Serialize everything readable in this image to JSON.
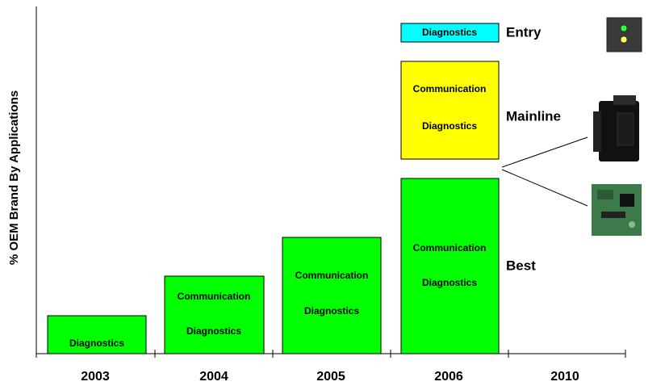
{
  "axis_label": "% OEM Brand By Applications",
  "years": [
    "2003",
    "2004",
    "2005",
    "2006",
    "2010"
  ],
  "blocks": [
    {
      "lines": [
        "Diagnostics"
      ]
    },
    {
      "lines": [
        "Communication",
        "Diagnostics"
      ]
    },
    {
      "lines": [
        "Communication",
        "Diagnostics"
      ]
    },
    {
      "lines": [
        "Communication",
        "Diagnostics"
      ]
    },
    {
      "lines": [
        "Communication",
        "Diagnostics"
      ]
    },
    {
      "lines": [
        "Diagnostics"
      ]
    }
  ],
  "tiers": [
    "Entry",
    "Mainline",
    "Best"
  ]
}
